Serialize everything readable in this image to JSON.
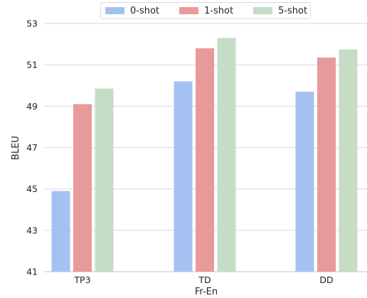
{
  "chart_data": {
    "type": "bar",
    "categories": [
      "TP3",
      "TD",
      "DD"
    ],
    "xlabel": "Fr-En",
    "ylabel": "BLEU",
    "ylim": [
      41,
      53
    ],
    "yticks": [
      41,
      43,
      45,
      47,
      49,
      51,
      53
    ],
    "grid": true,
    "legend_position": "top-center",
    "series": [
      {
        "name": "0-shot",
        "color": "#a5c1f2",
        "values": [
          44.9,
          50.2,
          49.7
        ]
      },
      {
        "name": "1-shot",
        "color": "#e89a9a",
        "values": [
          49.1,
          51.8,
          51.35
        ]
      },
      {
        "name": "5-shot",
        "color": "#c6dcc4",
        "values": [
          49.85,
          52.3,
          51.75
        ]
      }
    ]
  }
}
